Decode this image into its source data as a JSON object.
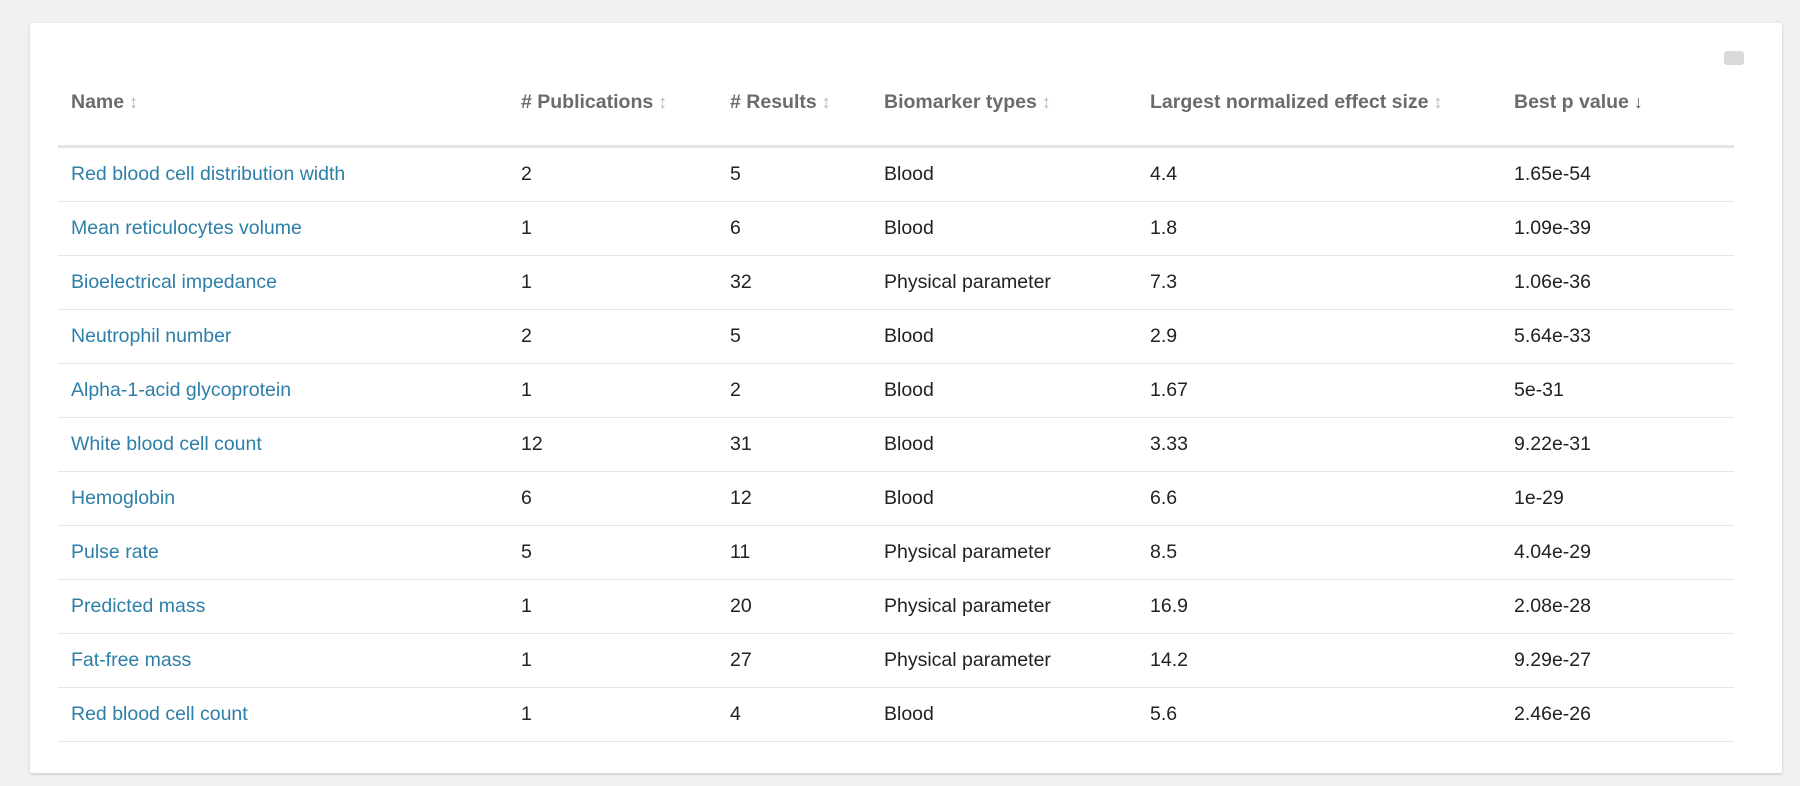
{
  "table": {
    "columns": [
      {
        "label": "Name",
        "sort": "↕"
      },
      {
        "label": "# Publications",
        "sort": "↕"
      },
      {
        "label": "# Results",
        "sort": "↕"
      },
      {
        "label": "Biomarker types",
        "sort": "↕"
      },
      {
        "label": "Largest normalized effect size",
        "sort": "↕"
      },
      {
        "label": "Best p value",
        "sort": "↓"
      }
    ],
    "rows": [
      {
        "name": "Red blood cell distribution width",
        "publications": "2",
        "results": "5",
        "type": "Blood",
        "effect": "4.4",
        "p": "1.65e-54"
      },
      {
        "name": "Mean reticulocytes volume",
        "publications": "1",
        "results": "6",
        "type": "Blood",
        "effect": "1.8",
        "p": "1.09e-39"
      },
      {
        "name": "Bioelectrical impedance",
        "publications": "1",
        "results": "32",
        "type": "Physical parameter",
        "effect": "7.3",
        "p": "1.06e-36"
      },
      {
        "name": "Neutrophil number",
        "publications": "2",
        "results": "5",
        "type": "Blood",
        "effect": "2.9",
        "p": "5.64e-33"
      },
      {
        "name": "Alpha-1-acid glycoprotein",
        "publications": "1",
        "results": "2",
        "type": "Blood",
        "effect": "1.67",
        "p": "5e-31"
      },
      {
        "name": "White blood cell count",
        "publications": "12",
        "results": "31",
        "type": "Blood",
        "effect": "3.33",
        "p": "9.22e-31"
      },
      {
        "name": "Hemoglobin",
        "publications": "6",
        "results": "12",
        "type": "Blood",
        "effect": "6.6",
        "p": "1e-29"
      },
      {
        "name": "Pulse rate",
        "publications": "5",
        "results": "11",
        "type": "Physical parameter",
        "effect": "8.5",
        "p": "4.04e-29"
      },
      {
        "name": "Predicted mass",
        "publications": "1",
        "results": "20",
        "type": "Physical parameter",
        "effect": "16.9",
        "p": "2.08e-28"
      },
      {
        "name": "Fat-free mass",
        "publications": "1",
        "results": "27",
        "type": "Physical parameter",
        "effect": "14.2",
        "p": "9.29e-27"
      },
      {
        "name": "Red blood cell count",
        "publications": "1",
        "results": "4",
        "type": "Blood",
        "effect": "5.6",
        "p": "2.46e-26"
      }
    ]
  },
  "colors": {
    "link": "#2c7fa8",
    "header_text": "#6b6b6b",
    "background": "#f1f1f1"
  }
}
